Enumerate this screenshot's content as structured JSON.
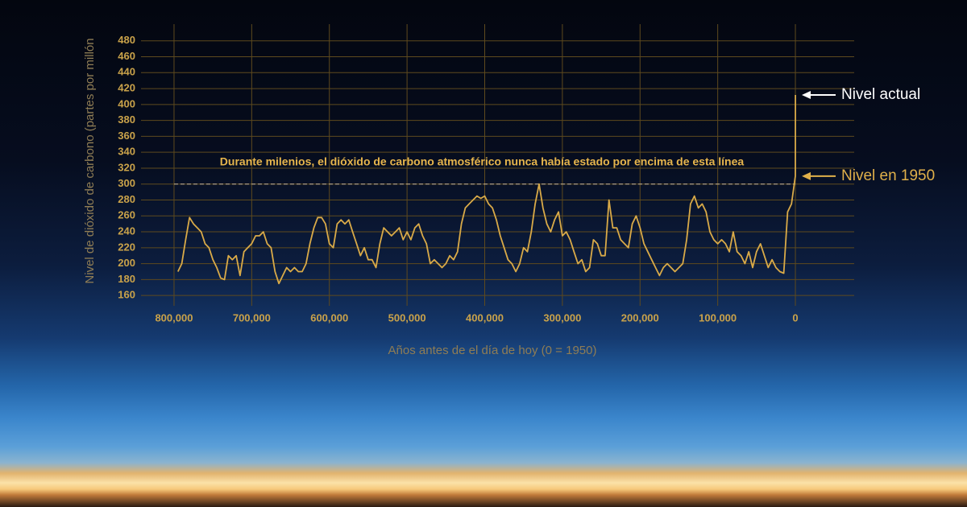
{
  "chart_data": {
    "type": "line",
    "x_label": "Años antes de el día de hoy (0 = 1950)",
    "y_label": "Nivel de dióxido de carbono (partes por millón",
    "xlim": [
      842500,
      -75700
    ],
    "ylim": [
      147,
      501
    ],
    "xticks": [
      {
        "value": 800000,
        "label": "800,000"
      },
      {
        "value": 700000,
        "label": "700,000"
      },
      {
        "value": 600000,
        "label": "600,000"
      },
      {
        "value": 500000,
        "label": "500,000"
      },
      {
        "value": 400000,
        "label": "400,000"
      },
      {
        "value": 300000,
        "label": "300,000"
      },
      {
        "value": 200000,
        "label": "200,000"
      },
      {
        "value": 100000,
        "label": "100,000"
      },
      0
    ],
    "yticks": [
      160,
      180,
      200,
      220,
      240,
      260,
      280,
      300,
      320,
      340,
      360,
      380,
      400,
      420,
      440,
      460,
      480
    ],
    "grid": true,
    "threshold": {
      "value": 300,
      "label": "Durante milenios, el dióxido de carbono atmosférico nunca había estado por encima de esta línea"
    },
    "annotations": [
      {
        "text": "Nivel actual",
        "value": 412,
        "color": "#ffffff"
      },
      {
        "text": "Nivel en 1950",
        "value": 310,
        "color": "#e0b04a"
      }
    ],
    "series": [
      {
        "color": "#d9aa48",
        "x": [
          795000,
          790000,
          785000,
          780000,
          775000,
          770000,
          765000,
          760000,
          755000,
          750000,
          745000,
          740000,
          735000,
          730000,
          725000,
          720000,
          715000,
          710000,
          705000,
          700000,
          695000,
          690000,
          685000,
          680000,
          675000,
          670000,
          665000,
          660000,
          655000,
          650000,
          645000,
          640000,
          635000,
          630000,
          625000,
          620000,
          615000,
          610000,
          605000,
          600000,
          595000,
          590000,
          585000,
          580000,
          575000,
          570000,
          565000,
          560000,
          555000,
          550000,
          545000,
          540000,
          535000,
          530000,
          525000,
          520000,
          515000,
          510000,
          505000,
          500000,
          495000,
          490000,
          485000,
          480000,
          475000,
          470000,
          465000,
          460000,
          455000,
          450000,
          445000,
          440000,
          435000,
          430000,
          425000,
          420000,
          415000,
          410000,
          405000,
          400000,
          395000,
          390000,
          385000,
          380000,
          375000,
          370000,
          365000,
          360000,
          355000,
          350000,
          345000,
          340000,
          335000,
          330000,
          325000,
          320000,
          315000,
          310000,
          305000,
          300000,
          295000,
          290000,
          285000,
          280000,
          275000,
          270000,
          265000,
          260000,
          255000,
          250000,
          245000,
          240000,
          235000,
          230000,
          225000,
          220000,
          215000,
          210000,
          205000,
          200000,
          195000,
          190000,
          185000,
          180000,
          175000,
          170000,
          165000,
          160000,
          155000,
          150000,
          145000,
          140000,
          135000,
          130000,
          125000,
          120000,
          115000,
          110000,
          105000,
          100000,
          95000,
          90000,
          85000,
          80000,
          75000,
          70000,
          65000,
          60000,
          55000,
          50000,
          45000,
          40000,
          35000,
          30000,
          25000,
          20000,
          15000,
          10000,
          5000,
          0,
          -70
        ],
        "values": [
          190,
          200,
          230,
          258,
          250,
          245,
          240,
          225,
          220,
          205,
          195,
          182,
          180,
          210,
          205,
          210,
          185,
          215,
          220,
          225,
          235,
          235,
          240,
          225,
          220,
          190,
          175,
          185,
          195,
          190,
          195,
          190,
          190,
          200,
          225,
          245,
          258,
          258,
          250,
          225,
          220,
          250,
          255,
          250,
          255,
          240,
          225,
          210,
          220,
          205,
          205,
          195,
          225,
          245,
          240,
          235,
          240,
          245,
          230,
          240,
          230,
          245,
          250,
          235,
          225,
          200,
          205,
          200,
          195,
          200,
          210,
          205,
          215,
          250,
          270,
          275,
          280,
          285,
          282,
          285,
          275,
          270,
          255,
          235,
          220,
          205,
          200,
          190,
          200,
          220,
          215,
          240,
          275,
          300,
          270,
          250,
          240,
          255,
          265,
          235,
          240,
          230,
          215,
          200,
          205,
          190,
          195,
          230,
          225,
          210,
          210,
          280,
          245,
          245,
          230,
          225,
          220,
          250,
          260,
          245,
          225,
          215,
          205,
          195,
          185,
          195,
          200,
          195,
          190,
          195,
          200,
          230,
          275,
          285,
          270,
          275,
          265,
          240,
          230,
          225,
          230,
          225,
          215,
          240,
          215,
          210,
          200,
          215,
          195,
          215,
          225,
          210,
          195,
          205,
          195,
          190,
          188,
          265,
          275,
          310,
          412
        ]
      }
    ]
  }
}
